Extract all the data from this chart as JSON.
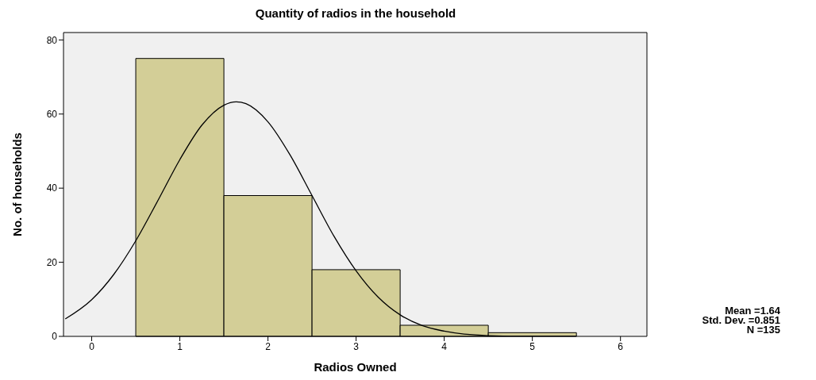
{
  "chart_data": {
    "type": "histogram",
    "title": "Quantity of radios in the household",
    "xlabel": "Radios Owned",
    "ylabel": "No. of households",
    "bins": [
      0.5,
      1.5,
      2.5,
      3.5,
      4.5,
      5.5
    ],
    "values": [
      75,
      38,
      18,
      3,
      1
    ],
    "color": "#d3ce97",
    "xlim": [
      -0.32,
      6.3
    ],
    "xticks": [
      0,
      1,
      2,
      3,
      4,
      5,
      6
    ],
    "ylim": [
      0,
      82
    ],
    "yticks": [
      0,
      20,
      40,
      60,
      80
    ],
    "marker": "none",
    "series": [
      {
        "type": "line",
        "color": "#000000",
        "x": [
          -0.3,
          0,
          0.25,
          0.5,
          0.75,
          1,
          1.25,
          1.5,
          1.64,
          1.75,
          2,
          2.25,
          2.5,
          2.75,
          3,
          3.25,
          3.5,
          3.75,
          4,
          4.5,
          5,
          5.5
        ],
        "values": [
          4.7,
          9.9,
          16.7,
          25.8,
          36.6,
          47.7,
          57,
          62.4,
          63.3,
          62.8,
          57.9,
          49,
          38,
          27,
          17.7,
          10.6,
          5.8,
          2.9,
          1.4,
          0.2,
          0,
          0
        ]
      }
    ],
    "annotations": [
      "Mean =1.64",
      "Std. Dev. =0.851",
      "N =135"
    ]
  }
}
